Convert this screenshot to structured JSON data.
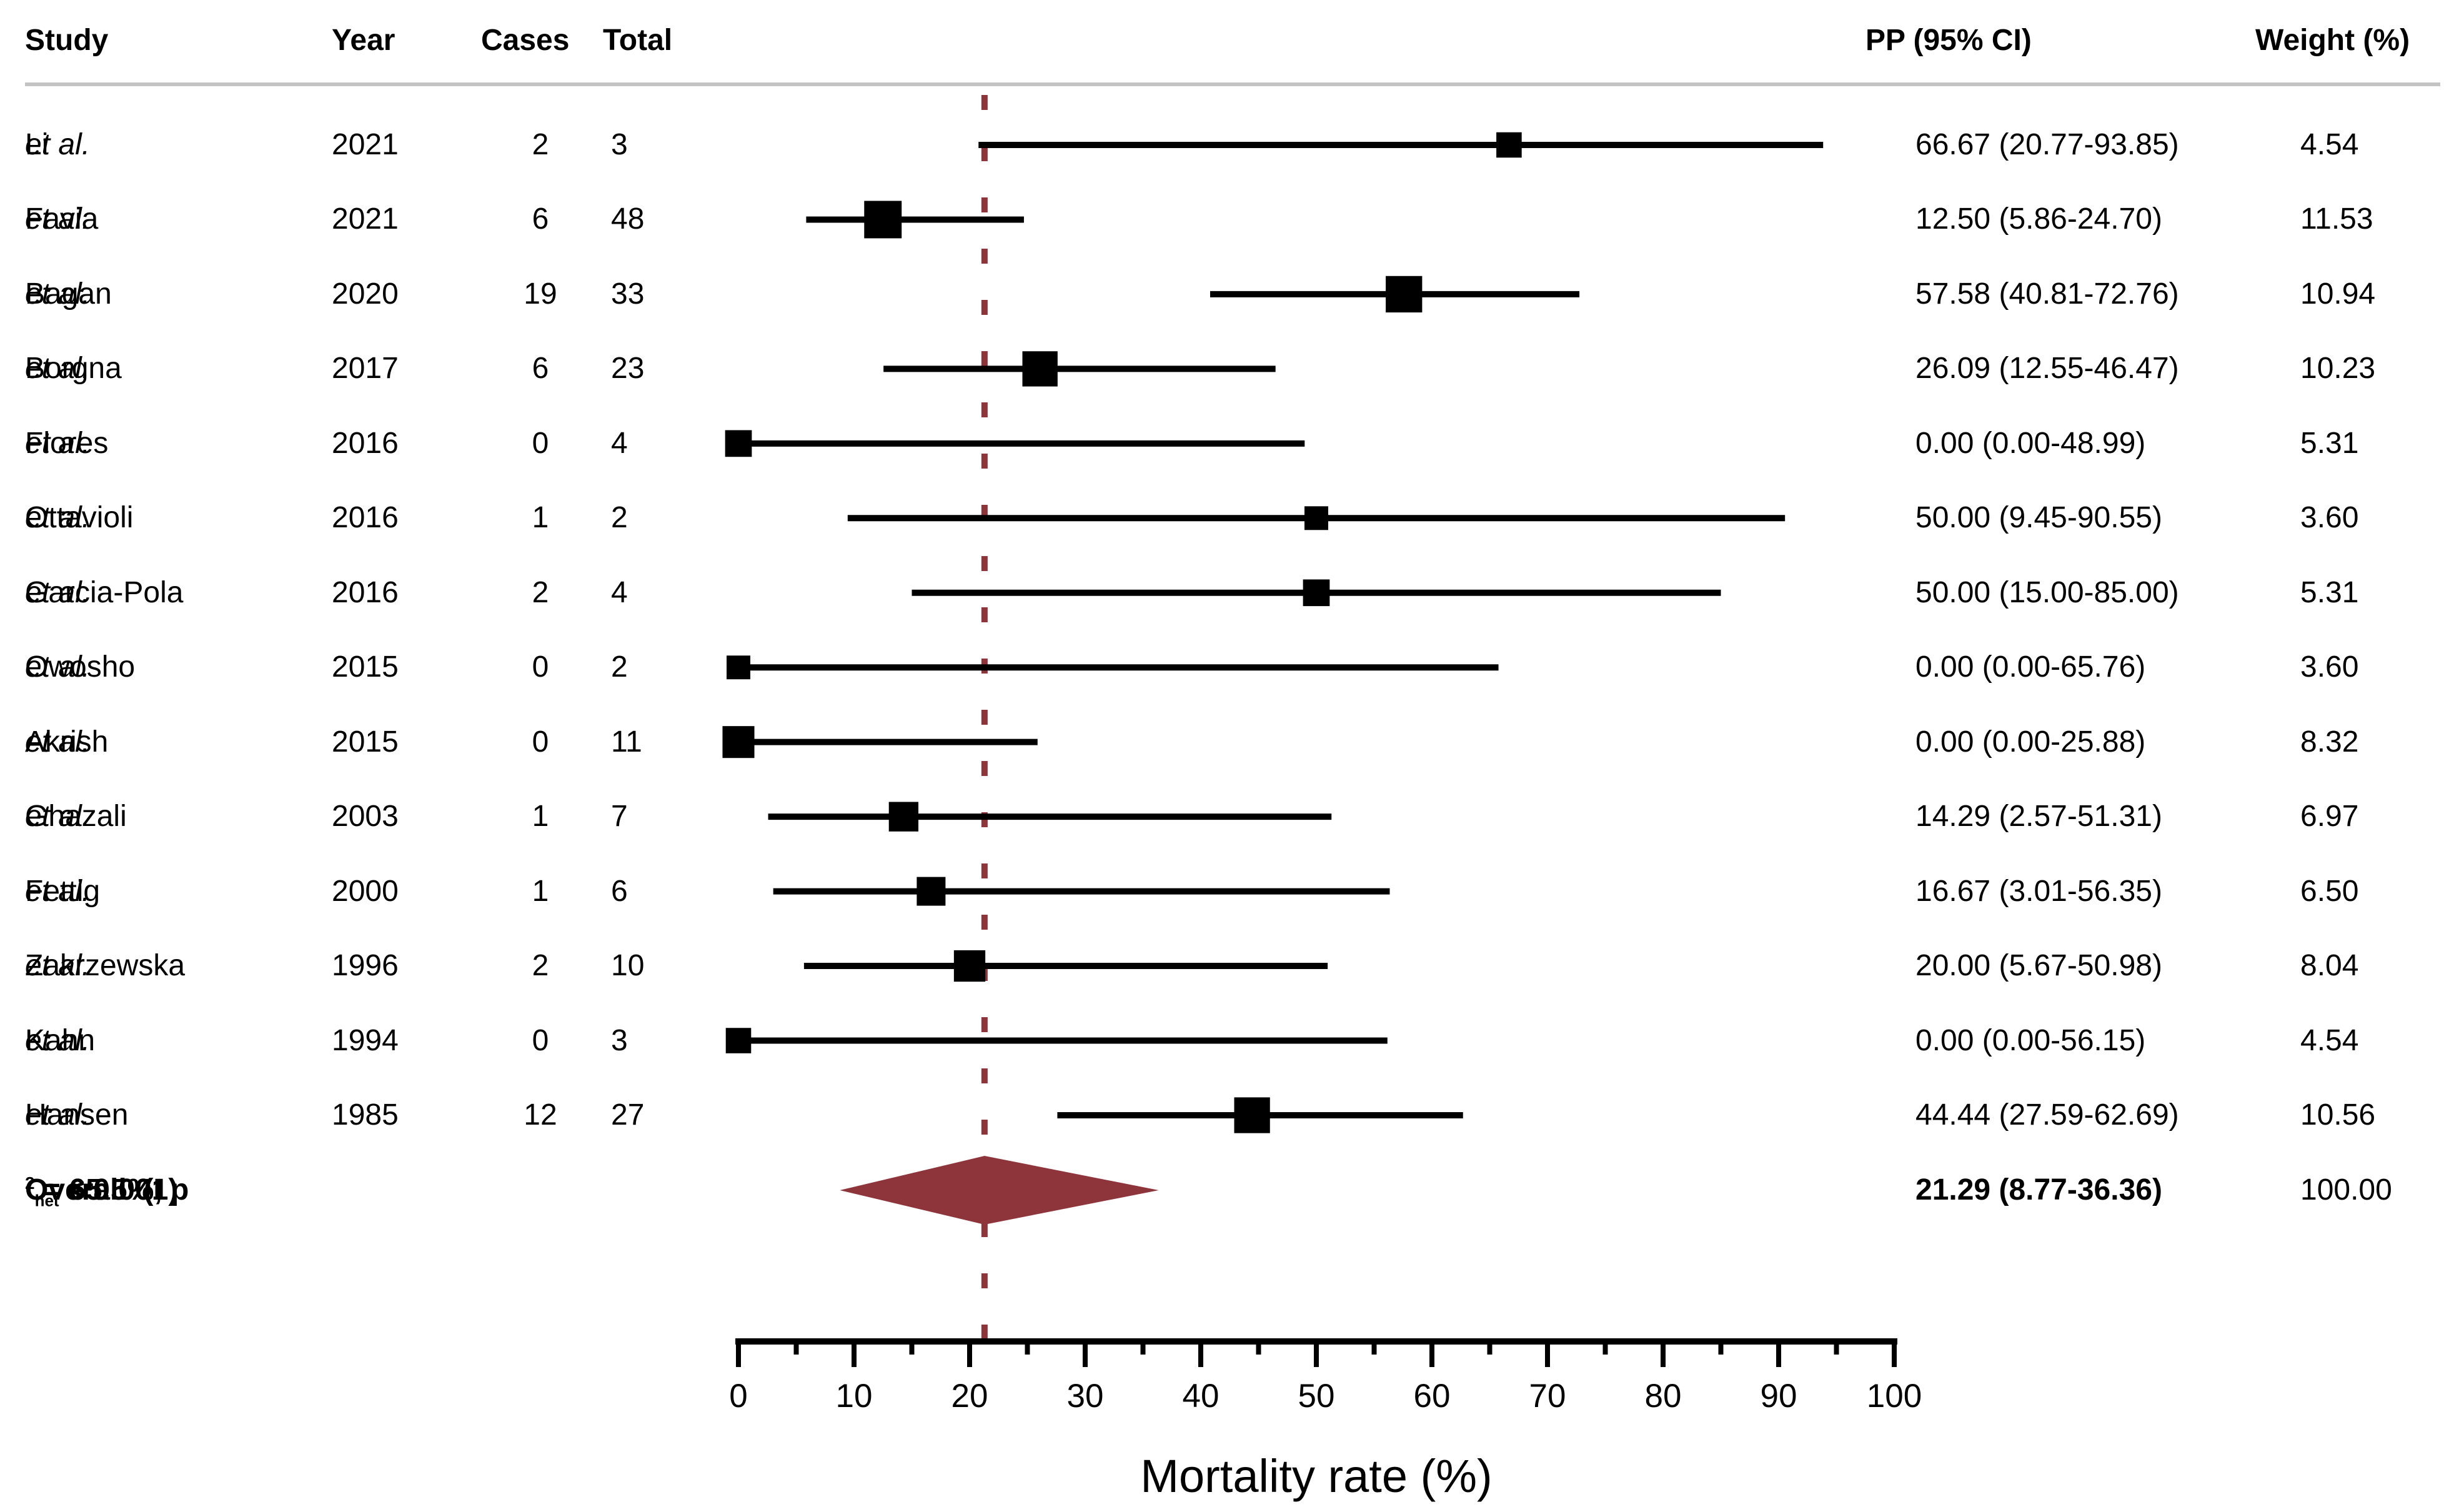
{
  "header": {
    "study": "Study",
    "year": "Year",
    "cases": "Cases",
    "total": "Total",
    "pp_ci": "PP (95% CI)",
    "weight": "Weight (%)"
  },
  "colors": {
    "accent": "#8e343b",
    "marker": "#000000",
    "separator": "#c3c3c3",
    "background": "#ffffff"
  },
  "chart_data": {
    "type": "forest",
    "xlabel": "Mortality rate (%)",
    "xlim": [
      0,
      100
    ],
    "x_ticks": [
      0,
      10,
      20,
      30,
      40,
      50,
      60,
      70,
      80,
      90,
      100
    ],
    "x_minor_ticks": [
      5,
      15,
      25,
      35,
      45,
      55,
      65,
      75,
      85,
      95
    ],
    "reference_line": 21.29,
    "studies": [
      {
        "name": "Li",
        "etal": "et al.",
        "year": "2021",
        "cases": "2",
        "total": "3",
        "pp": 66.67,
        "ci_low": 20.77,
        "ci_high": 93.85,
        "pp_ci_label": "66.67 (20.77-93.85)",
        "weight": 4.54,
        "weight_label": "4.54"
      },
      {
        "name": "Favia",
        "etal": "et al.",
        "year": "2021",
        "cases": "6",
        "total": "48",
        "pp": 12.5,
        "ci_low": 5.86,
        "ci_high": 24.7,
        "pp_ci_label": "12.50 (5.86-24.70)",
        "weight": 11.53,
        "weight_label": "11.53"
      },
      {
        "name": "Bagan",
        "etal": "et al.",
        "year": "2020",
        "cases": "19",
        "total": "33",
        "pp": 57.58,
        "ci_low": 40.81,
        "ci_high": 72.76,
        "pp_ci_label": "57.58 (40.81-72.76)",
        "weight": 10.94,
        "weight_label": "10.94"
      },
      {
        "name": "Borgna",
        "etal": "et al.",
        "year": "2017",
        "cases": "6",
        "total": "23",
        "pp": 26.09,
        "ci_low": 12.55,
        "ci_high": 46.47,
        "pp_ci_label": "26.09 (12.55-46.47)",
        "weight": 10.23,
        "weight_label": "10.23"
      },
      {
        "name": "Flores",
        "etal": "et al.",
        "year": "2016",
        "cases": "0",
        "total": "4",
        "pp": 0.0,
        "ci_low": 0.0,
        "ci_high": 48.99,
        "pp_ci_label": "0.00 (0.00-48.99)",
        "weight": 5.31,
        "weight_label": "5.31"
      },
      {
        "name": "Ottavioli",
        "etal": "et al.",
        "year": "2016",
        "cases": "1",
        "total": "2",
        "pp": 50.0,
        "ci_low": 9.45,
        "ci_high": 90.55,
        "pp_ci_label": "50.00 (9.45-90.55)",
        "weight": 3.6,
        "weight_label": "3.60"
      },
      {
        "name": "Garcia-Pola",
        "etal": "et al.",
        "year": "2016",
        "cases": "2",
        "total": "4",
        "pp": 50.0,
        "ci_low": 15.0,
        "ci_high": 85.0,
        "pp_ci_label": "50.00 (15.00-85.00)",
        "weight": 5.31,
        "weight_label": "5.31"
      },
      {
        "name": "Owosho",
        "etal": "et al.",
        "year": "2015",
        "cases": "0",
        "total": "2",
        "pp": 0.0,
        "ci_low": 0.0,
        "ci_high": 65.76,
        "pp_ci_label": "0.00 (0.00-65.76)",
        "weight": 3.6,
        "weight_label": "3.60"
      },
      {
        "name": "Akrish",
        "etal": "et al.",
        "year": "2015",
        "cases": "0",
        "total": "11",
        "pp": 0.0,
        "ci_low": 0.0,
        "ci_high": 25.88,
        "pp_ci_label": "0.00 (0.00-25.88)",
        "weight": 8.32,
        "weight_label": "8.32"
      },
      {
        "name": "Ghazali",
        "etal": "et al.",
        "year": "2003",
        "cases": "1",
        "total": "7",
        "pp": 14.29,
        "ci_low": 2.57,
        "ci_high": 51.31,
        "pp_ci_label": "14.29 (2.57-51.31)",
        "weight": 6.97,
        "weight_label": "6.97"
      },
      {
        "name": "Fettig",
        "etal": "et al.",
        "year": "2000",
        "cases": "1",
        "total": "6",
        "pp": 16.67,
        "ci_low": 3.01,
        "ci_high": 56.35,
        "pp_ci_label": "16.67 (3.01-56.35)",
        "weight": 6.5,
        "weight_label": "6.50"
      },
      {
        "name": "Zakrzewska",
        "etal": "et al.",
        "year": "1996",
        "cases": "2",
        "total": "10",
        "pp": 20.0,
        "ci_low": 5.67,
        "ci_high": 50.98,
        "pp_ci_label": "20.00 (5.67-50.98)",
        "weight": 8.04,
        "weight_label": "8.04"
      },
      {
        "name": "Kahn",
        "etal": "et al.",
        "year": "1994",
        "cases": "0",
        "total": "3",
        "pp": 0.0,
        "ci_low": 0.0,
        "ci_high": 56.15,
        "pp_ci_label": "0.00 (0.00-56.15)",
        "weight": 4.54,
        "weight_label": "4.54"
      },
      {
        "name": "Hansen",
        "etal": "et al.",
        "year": "1985",
        "cases": "12",
        "total": "27",
        "pp": 44.44,
        "ci_low": 27.59,
        "ci_high": 62.69,
        "pp_ci_label": "44.44 (27.59-62.69)",
        "weight": 10.56,
        "weight_label": "10.56"
      }
    ],
    "overall": {
      "label_prefix": "Overall  (I",
      "label_sup": "2",
      "label_mid": " = 65.5%, p",
      "label_sub": "het",
      "label_suffix": " < 0.001)",
      "pp": 21.29,
      "ci_low": 8.77,
      "ci_high": 36.36,
      "pp_ci_label": "21.29 (8.77-36.36)",
      "weight_label": "100.00"
    }
  }
}
